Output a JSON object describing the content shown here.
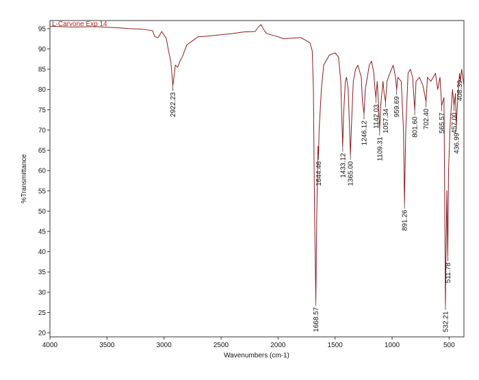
{
  "chart_data": {
    "type": "line",
    "title": "L-Carvone Exp 14",
    "xlabel": "Wavenumbers (cm-1)",
    "ylabel": "%Transmittance",
    "xlim": [
      4000,
      370
    ],
    "ylim": [
      19,
      97
    ],
    "xticks": [
      4000,
      3500,
      3000,
      2500,
      2000,
      1500,
      1000,
      500
    ],
    "yticks": [
      20,
      25,
      30,
      35,
      40,
      45,
      50,
      55,
      60,
      65,
      70,
      75,
      80,
      85,
      90,
      95
    ],
    "grid": false,
    "series": [
      {
        "name": "L-Carvone Exp 14",
        "color": "#8b1a1a",
        "x": [
          4000,
          3800,
          3600,
          3400,
          3300,
          3200,
          3100,
          3080,
          3050,
          3020,
          2980,
          2960,
          2940,
          2922.23,
          2900,
          2880,
          2860,
          2840,
          2800,
          2700,
          2600,
          2500,
          2400,
          2300,
          2200,
          2170,
          2150,
          2120,
          2100,
          2000,
          1950,
          1900,
          1800,
          1750,
          1720,
          1700,
          1690,
          1680,
          1668.57,
          1660,
          1650,
          1644.46,
          1640,
          1620,
          1600,
          1550,
          1500,
          1470,
          1450,
          1440,
          1433.12,
          1425,
          1410,
          1400,
          1385,
          1375,
          1365,
          1355,
          1340,
          1320,
          1300,
          1270,
          1260,
          1246.12,
          1235,
          1200,
          1180,
          1160,
          1150,
          1142.03,
          1130,
          1115,
          1109.31,
          1100,
          1080,
          1070,
          1057.34,
          1045,
          1020,
          990,
          970,
          959.69,
          950,
          920,
          900,
          891.26,
          880,
          860,
          840,
          820,
          801.6,
          790,
          760,
          730,
          702.4,
          690,
          660,
          620,
          600,
          580,
          565.57,
          545,
          532.21,
          520,
          511.78,
          505,
          490,
          470,
          457,
          445,
          436.99,
          420,
          408.39,
          400,
          390,
          380,
          370
        ],
        "values": [
          95.6,
          95.4,
          95.5,
          95.2,
          95.0,
          94.9,
          94.5,
          93.0,
          92.8,
          94.3,
          92.6,
          89.5,
          86.8,
          81,
          86,
          85.5,
          87,
          88,
          91,
          93,
          93.2,
          93.5,
          93.8,
          94.2,
          94.3,
          95.5,
          96.0,
          94.5,
          93.8,
          93.0,
          92.5,
          92.6,
          92.8,
          92.0,
          91.5,
          89.5,
          80,
          50,
          28,
          50,
          66,
          64,
          70,
          80,
          86,
          88.5,
          89,
          88,
          82,
          72,
          66,
          74,
          82,
          83,
          80,
          72,
          64,
          72,
          82,
          85,
          86,
          83,
          77,
          74,
          80,
          86,
          87,
          84,
          80,
          78,
          82,
          74,
          70,
          76,
          82,
          79,
          77,
          82,
          84,
          86,
          83,
          80,
          83,
          82,
          70,
          52,
          70,
          84,
          85,
          83,
          75,
          82,
          83,
          81,
          77,
          83,
          82,
          84,
          80,
          83,
          76,
          78,
          27,
          55,
          39,
          60,
          72,
          80,
          76,
          79,
          71,
          80,
          84,
          82,
          85,
          83,
          81
        ]
      }
    ],
    "peaks": [
      {
        "x": 2922.23,
        "y": 81
      },
      {
        "x": 1668.57,
        "y": 28
      },
      {
        "x": 1644.46,
        "y": 64
      },
      {
        "x": 1433.12,
        "y": 66
      },
      {
        "x": {
          "value": 1365,
          "label": "1365.00"
        },
        "y": 64
      },
      {
        "x": 1246.12,
        "y": 74
      },
      {
        "x": 1142.03,
        "y": 78
      },
      {
        "x": 1109.31,
        "y": 70
      },
      {
        "x": 1057.34,
        "y": 77
      },
      {
        "x": 959.69,
        "y": 80
      },
      {
        "x": 891.26,
        "y": 52
      },
      {
        "x": {
          "value": 801.6,
          "label": "801.60"
        },
        "y": 75
      },
      {
        "x": {
          "value": 702.4,
          "label": "702.40"
        },
        "y": 77
      },
      {
        "x": 565.57,
        "y": 76
      },
      {
        "x": 532.21,
        "y": 27
      },
      {
        "x": 511.78,
        "y": 39
      },
      {
        "x": {
          "value": 457,
          "label": "457.00"
        },
        "y": 76
      },
      {
        "x": 436.99,
        "y": 71
      },
      {
        "x": 408.39,
        "y": 84
      }
    ]
  }
}
